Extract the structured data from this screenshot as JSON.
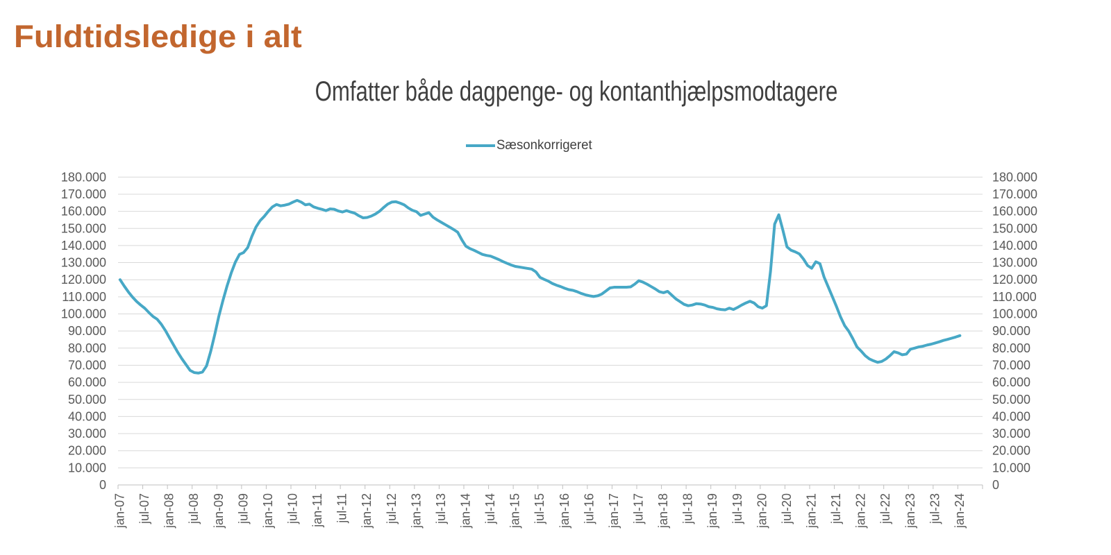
{
  "page_title": "Fuldtidsledige i alt",
  "colors": {
    "title": "#C2662E",
    "series": "#47A8C6",
    "gridline": "#D9D9D9",
    "axis": "#BFBFBF",
    "tick_label": "#595959",
    "chart_title": "#3F3F3F"
  },
  "chart_data": {
    "type": "line",
    "title": "Omfatter både dagpenge- og kontanthjælpsmodtagere",
    "legend_position": "top-center",
    "grid": "horizontal",
    "ylim": [
      0,
      180000
    ],
    "y_tick_step": 10000,
    "y_tick_labels": [
      "0",
      "10.000",
      "20.000",
      "30.000",
      "40.000",
      "50.000",
      "60.000",
      "70.000",
      "80.000",
      "90.000",
      "100.000",
      "110.000",
      "120.000",
      "130.000",
      "140.000",
      "150.000",
      "160.000",
      "170.000",
      "180.000"
    ],
    "x_tick_labels": [
      "jan-07",
      "jul-07",
      "jan-08",
      "jul-08",
      "jan-09",
      "jul-09",
      "jan-10",
      "jul-10",
      "jan-11",
      "jul-11",
      "jan-12",
      "jul-12",
      "jan-13",
      "jul-13",
      "jan-14",
      "jul-14",
      "jan-15",
      "jul-15",
      "jan-16",
      "jul-16",
      "jan-17",
      "jul-17",
      "jan-18",
      "jul-18",
      "jan-19",
      "jul-19",
      "jan-20",
      "jul-20",
      "jan-21",
      "jul-21",
      "jan-22",
      "jul-22",
      "jan-23",
      "jul-23",
      "jan-24"
    ],
    "x_tick_interval_months": 6,
    "x_start": "jan-07",
    "x_frequency": "monthly",
    "series": [
      {
        "name": "Sæsonkorrigeret",
        "color": "#47A8C6",
        "values": [
          120000,
          116300,
          112900,
          109900,
          107300,
          105200,
          103300,
          100800,
          98500,
          96900,
          94000,
          90300,
          86000,
          81800,
          77600,
          73800,
          70400,
          67000,
          65700,
          65400,
          66000,
          69600,
          78000,
          88000,
          98800,
          108000,
          116500,
          124000,
          130300,
          134800,
          135900,
          138800,
          145300,
          150800,
          154500,
          157000,
          160000,
          162600,
          164000,
          163200,
          163600,
          164200,
          165400,
          166400,
          165400,
          163800,
          164200,
          162600,
          161800,
          161200,
          160400,
          161400,
          161200,
          160200,
          159600,
          160400,
          159600,
          158900,
          157400,
          156200,
          156400,
          157200,
          158400,
          160000,
          162200,
          164200,
          165400,
          165600,
          164800,
          163800,
          162000,
          160600,
          159800,
          157600,
          158400,
          159200,
          156600,
          155000,
          153600,
          152200,
          150800,
          149400,
          147800,
          143400,
          139600,
          138200,
          137200,
          136000,
          134800,
          134200,
          133800,
          132800,
          131800,
          130600,
          129600,
          128600,
          127800,
          127400,
          127000,
          126600,
          126200,
          124600,
          121400,
          120200,
          119200,
          117800,
          116800,
          116000,
          115000,
          114200,
          113800,
          113000,
          112000,
          111200,
          110600,
          110200,
          110600,
          111600,
          113400,
          115200,
          115600,
          115600,
          115600,
          115600,
          115800,
          117400,
          119400,
          118600,
          117400,
          116000,
          114600,
          113000,
          112400,
          113200,
          111000,
          108800,
          107200,
          105600,
          104800,
          105200,
          106000,
          105800,
          105200,
          104200,
          103800,
          103000,
          102600,
          102400,
          103400,
          102600,
          103800,
          105200,
          106400,
          107400,
          106400,
          104200,
          103400,
          104800,
          125000,
          152500,
          158000,
          149000,
          139200,
          137200,
          136300,
          135100,
          132100,
          128300,
          126700,
          130500,
          129400,
          121600,
          115900,
          110200,
          104400,
          98300,
          93200,
          89900,
          85500,
          80700,
          78300,
          75600,
          73700,
          72600,
          71700,
          72200,
          73600,
          75600,
          77900,
          77200,
          76100,
          76500,
          79400,
          80000,
          80700,
          81100,
          81800,
          82300,
          83000,
          83700,
          84500,
          85100,
          85800,
          86500,
          87300
        ]
      }
    ]
  }
}
